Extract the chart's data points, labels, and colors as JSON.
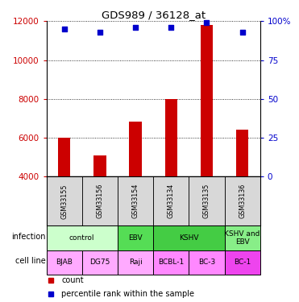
{
  "title": "GDS989 / 36128_at",
  "samples": [
    "GSM33155",
    "GSM33156",
    "GSM33154",
    "GSM33134",
    "GSM33135",
    "GSM33136"
  ],
  "counts": [
    6020,
    5080,
    6820,
    7980,
    11800,
    6400
  ],
  "percentiles": [
    95,
    93,
    96,
    96,
    99,
    93
  ],
  "ylim_left": [
    4000,
    12000
  ],
  "ylim_right": [
    0,
    100
  ],
  "bar_color": "#cc0000",
  "dot_color": "#0000cc",
  "yticks_left": [
    4000,
    6000,
    8000,
    10000,
    12000
  ],
  "yticks_right": [
    0,
    25,
    50,
    75,
    100
  ],
  "infection_labels": [
    {
      "text": "control",
      "span": [
        0,
        2
      ],
      "color": "#ccffcc"
    },
    {
      "text": "EBV",
      "span": [
        2,
        3
      ],
      "color": "#55dd55"
    },
    {
      "text": "KSHV",
      "span": [
        3,
        5
      ],
      "color": "#44cc44"
    },
    {
      "text": "KSHV and\nEBV",
      "span": [
        5,
        6
      ],
      "color": "#88ee88"
    }
  ],
  "cell_line_labels": [
    {
      "text": "BJAB",
      "span": [
        0,
        1
      ],
      "color": "#ffaaff"
    },
    {
      "text": "DG75",
      "span": [
        1,
        2
      ],
      "color": "#ffaaff"
    },
    {
      "text": "Raji",
      "span": [
        2,
        3
      ],
      "color": "#ffaaff"
    },
    {
      "text": "BCBL-1",
      "span": [
        3,
        4
      ],
      "color": "#ff88ff"
    },
    {
      "text": "BC-3",
      "span": [
        4,
        5
      ],
      "color": "#ff88ff"
    },
    {
      "text": "BC-1",
      "span": [
        5,
        6
      ],
      "color": "#ee44ee"
    }
  ],
  "left_label_color": "#cc0000",
  "right_label_color": "#0000cc",
  "background_color": "#ffffff",
  "sample_box_color": "#d8d8d8",
  "bar_width": 0.35,
  "legend_red_text": "count",
  "legend_blue_text": "percentile rank within the sample"
}
